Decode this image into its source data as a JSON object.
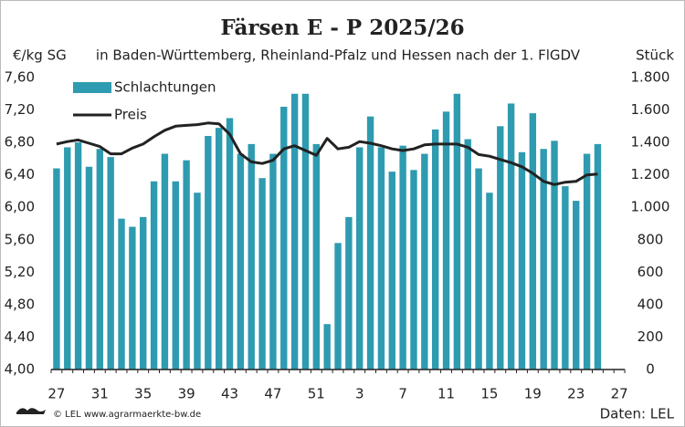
{
  "chart_data": {
    "type": "bar_line",
    "title": "Färsen E - P 2025/26",
    "subtitle": "in Baden-Württemberg, Rheinland-Pfalz und Hessen nach der 1. FlGDV",
    "y_axis_label": "€/kg SG",
    "y2_axis_label": "Stück",
    "footer_left": "© LEL www.agrarmaerkte-bw.de",
    "footer_right": "Daten: LEL",
    "categories": [
      "27",
      null,
      null,
      null,
      "31",
      null,
      null,
      null,
      "35",
      null,
      null,
      null,
      "39",
      null,
      null,
      null,
      "43",
      null,
      null,
      null,
      "47",
      null,
      null,
      null,
      "51",
      null,
      null,
      null,
      "3",
      null,
      null,
      null,
      "7",
      null,
      null,
      null,
      "11",
      null,
      null,
      null,
      "15",
      null,
      null,
      null,
      "19",
      null,
      null,
      null,
      "23",
      null,
      null,
      null,
      "27"
    ],
    "series": [
      {
        "name": "Schlachtungen",
        "type": "bar",
        "axis": "y2",
        "color": "#2e9bb0",
        "values": [
          1240,
          1370,
          1400,
          1250,
          1360,
          1310,
          930,
          880,
          940,
          1160,
          1330,
          1160,
          1290,
          1090,
          1440,
          1490,
          1550,
          1330,
          1390,
          1180,
          1330,
          1620,
          1700,
          1700,
          1390,
          280,
          780,
          940,
          1370,
          1560,
          1370,
          1220,
          1380,
          1230,
          1330,
          1480,
          1590,
          1700,
          1420,
          1240,
          1090,
          1500,
          1640,
          1340,
          1580,
          1360,
          1410,
          1130,
          1040,
          1330,
          1390,
          null,
          null
        ]
      },
      {
        "name": "Preis",
        "type": "line",
        "axis": "y",
        "color": "#222222",
        "values": [
          6.78,
          6.81,
          6.83,
          6.79,
          6.75,
          6.66,
          6.66,
          6.73,
          6.78,
          6.87,
          6.95,
          7.0,
          7.01,
          7.02,
          7.04,
          7.03,
          6.9,
          6.66,
          6.56,
          6.54,
          6.58,
          6.72,
          6.76,
          6.7,
          6.64,
          6.85,
          6.72,
          6.74,
          6.81,
          6.79,
          6.76,
          6.72,
          6.7,
          6.72,
          6.77,
          6.78,
          6.78,
          6.78,
          6.74,
          6.65,
          6.63,
          6.59,
          6.55,
          6.5,
          6.42,
          6.32,
          6.28,
          6.31,
          6.32,
          6.4,
          6.41,
          null,
          null
        ]
      }
    ],
    "ylim": [
      4,
      7.6
    ],
    "yticks": [
      {
        "value": 4,
        "label": "4,00"
      },
      {
        "value": 4.4,
        "label": "4,40"
      },
      {
        "value": 4.8,
        "label": "4,80"
      },
      {
        "value": 5.2,
        "label": "5,20"
      },
      {
        "value": 5.6,
        "label": "5,60"
      },
      {
        "value": 6,
        "label": "6,00"
      },
      {
        "value": 6.4,
        "label": "6,40"
      },
      {
        "value": 6.8,
        "label": "6,80"
      },
      {
        "value": 7.2,
        "label": "7,20"
      },
      {
        "value": 7.6,
        "label": "7,60"
      }
    ],
    "y2lim": [
      0,
      1800
    ],
    "y2ticks": [
      0,
      200,
      400,
      600,
      800,
      {
        "value": 1000,
        "label": "1.000"
      },
      {
        "value": 1200,
        "label": "1.200"
      },
      {
        "value": 1400,
        "label": "1.400"
      },
      {
        "value": 1600,
        "label": "1.600"
      },
      {
        "value": 1800,
        "label": "1.800"
      }
    ],
    "legend_position": "upper left",
    "grid": false
  }
}
